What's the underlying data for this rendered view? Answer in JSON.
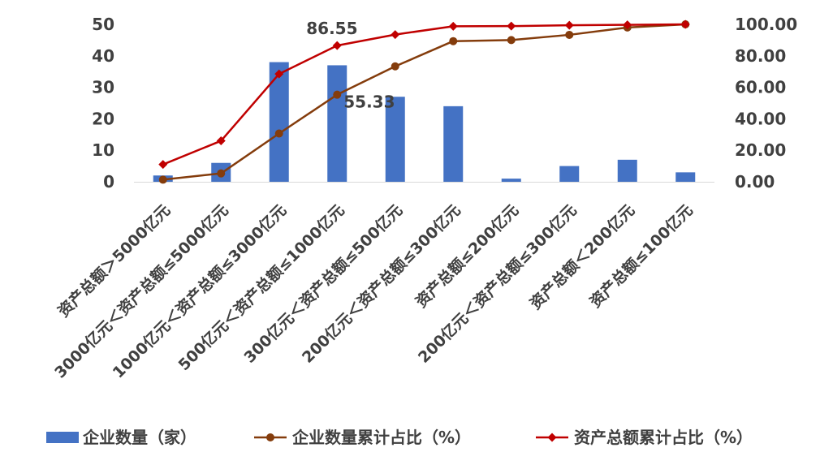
{
  "chart_data": {
    "type": "bar",
    "categories": [
      "资产总额＞5000亿元",
      "3000亿元＜资产总额≤5000亿元",
      "1000亿元＜资产总额≤3000亿元",
      "500亿元＜资产总额≤1000亿元",
      "300亿元＜资产总额≤500亿元",
      "200亿元＜资产总额≤300亿元",
      "资产总额≤200亿元",
      "200亿元＜资产总额≤300亿元",
      "资产总额＜200亿元",
      "资产总额≤100亿元"
    ],
    "series": [
      {
        "name": "企业数量（家）",
        "type": "bar",
        "axis": "left",
        "color": "#4472C4",
        "values": [
          2,
          6,
          38,
          37,
          27,
          24,
          1,
          5,
          7,
          3
        ]
      },
      {
        "name": "企业数量累计占比（%）",
        "type": "line",
        "axis": "right",
        "color": "#843C0C",
        "marker": "circle",
        "values": [
          1.33,
          5.33,
          30.67,
          55.33,
          73.33,
          89.33,
          90.0,
          93.33,
          98.0,
          100.0
        ]
      },
      {
        "name": "资产总额累计占比（%）",
        "type": "line",
        "axis": "right",
        "color": "#C00000",
        "marker": "diamond",
        "values": [
          11.0,
          26.0,
          68.5,
          86.55,
          93.5,
          98.8,
          98.9,
          99.4,
          99.7,
          100.0
        ]
      }
    ],
    "y_left": {
      "min": 0,
      "max": 50,
      "step": 10,
      "ticks": [
        "0",
        "10",
        "20",
        "30",
        "40",
        "50"
      ]
    },
    "y_right": {
      "min": 0,
      "max": 100,
      "step": 20,
      "ticks": [
        "0.00",
        "20.00",
        "40.00",
        "60.00",
        "80.00",
        "100.00"
      ]
    },
    "annotations": [
      {
        "series": 2,
        "index": 3,
        "text": "86.55"
      },
      {
        "series": 1,
        "index": 3,
        "text": "55.33"
      }
    ],
    "legend": "bottom",
    "grid": false
  }
}
